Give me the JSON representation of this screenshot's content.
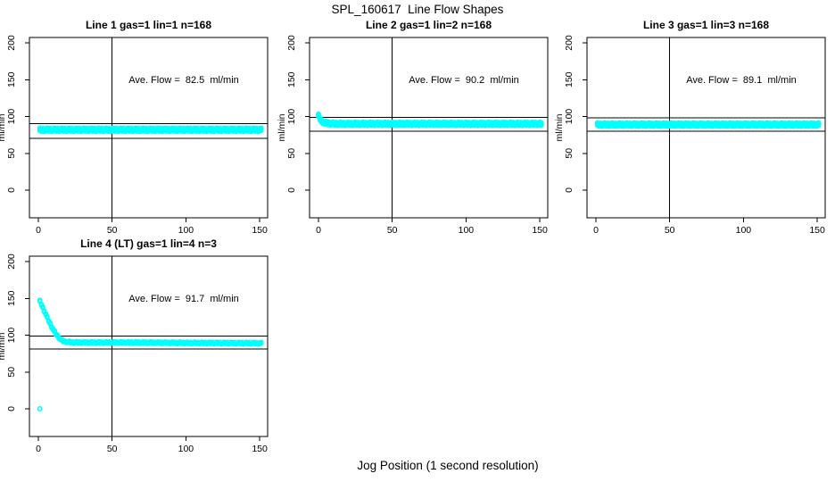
{
  "page": {
    "title": "SPL_160617  Line Flow Shapes",
    "xlabel": "Jog Position (1 second resolution)"
  },
  "colors": {
    "points": "#00FFFF",
    "axis": "#000000",
    "background": "#FFFFFF"
  },
  "chart_data": [
    {
      "type": "scatter",
      "title": "Line 1 gas=1 lin=1 n=168",
      "annotation": "Ave. Flow =  82.5  ml/min",
      "ave_flow_ml_min": 82.5,
      "gas": 1,
      "lin": 1,
      "n": 168,
      "ylabel": "ml/min",
      "x_ticks": [
        0,
        50,
        100,
        150
      ],
      "y_ticks": [
        0,
        50,
        100,
        150,
        200
      ],
      "xlim": [
        0,
        155
      ],
      "ylim": [
        -40,
        205
      ],
      "vline_x": 50,
      "ref_lines": [
        90.5,
        70.5
      ],
      "band_profile": [
        [
          1,
          82
        ],
        [
          151,
          82
        ]
      ],
      "band_thickness_px": 7,
      "outliers": []
    },
    {
      "type": "scatter",
      "title": "Line 2 gas=1 lin=2 n=168",
      "annotation": "Ave. Flow =  90.2  ml/min",
      "ave_flow_ml_min": 90.2,
      "gas": 1,
      "lin": 2,
      "n": 168,
      "ylabel": "ml/min",
      "x_ticks": [
        0,
        50,
        100,
        150
      ],
      "y_ticks": [
        0,
        50,
        100,
        150,
        200
      ],
      "xlim": [
        0,
        155
      ],
      "ylim": [
        -40,
        205
      ],
      "vline_x": 50,
      "ref_lines": [
        99,
        80
      ],
      "band_profile": [
        [
          0,
          101
        ],
        [
          1,
          97
        ],
        [
          2,
          94
        ],
        [
          4,
          91.5
        ],
        [
          7,
          90.5
        ],
        [
          12,
          90
        ],
        [
          151,
          90
        ]
      ],
      "band_thickness_px": 7,
      "outliers": []
    },
    {
      "type": "scatter",
      "title": "Line 3 gas=1 lin=3 n=168",
      "annotation": "Ave. Flow =  89.1  ml/min",
      "ave_flow_ml_min": 89.1,
      "gas": 1,
      "lin": 3,
      "n": 168,
      "ylabel": "ml/min",
      "x_ticks": [
        0,
        50,
        100,
        150
      ],
      "y_ticks": [
        0,
        50,
        100,
        150,
        200
      ],
      "xlim": [
        0,
        155
      ],
      "ylim": [
        -40,
        205
      ],
      "vline_x": 50,
      "ref_lines": [
        98,
        80
      ],
      "band_profile": [
        [
          1,
          89
        ],
        [
          151,
          89
        ]
      ],
      "band_thickness_px": 7,
      "outliers": []
    },
    {
      "type": "scatter",
      "title": "Line 4 (LT) gas=1 lin=4 n=3",
      "annotation": "Ave. Flow =  91.7  ml/min",
      "ave_flow_ml_min": 91.7,
      "gas": 1,
      "lin": 4,
      "n": 3,
      "ylabel": "ml/min",
      "x_ticks": [
        0,
        50,
        100,
        150
      ],
      "y_ticks": [
        0,
        50,
        100,
        150,
        200
      ],
      "xlim": [
        0,
        155
      ],
      "ylim": [
        -40,
        205
      ],
      "vline_x": 50,
      "ref_lines": [
        99,
        81
      ],
      "band_profile": [
        [
          1,
          146
        ],
        [
          2,
          142
        ],
        [
          3,
          137.5
        ],
        [
          4,
          133
        ],
        [
          5,
          128.5
        ],
        [
          6,
          124
        ],
        [
          7,
          119.5
        ],
        [
          8,
          115.5
        ],
        [
          9,
          111.5
        ],
        [
          10,
          108
        ],
        [
          11,
          104.5
        ],
        [
          12,
          101.5
        ],
        [
          13,
          99
        ],
        [
          14,
          96.5
        ],
        [
          15,
          94.5
        ],
        [
          16,
          93
        ],
        [
          17,
          92
        ],
        [
          18,
          91.3
        ],
        [
          20,
          90.7
        ],
        [
          23,
          90.2
        ],
        [
          28,
          90
        ],
        [
          60,
          90
        ],
        [
          100,
          89.5
        ],
        [
          151,
          89
        ]
      ],
      "band_thickness_px": 5,
      "outliers": [
        [
          1,
          0
        ]
      ]
    }
  ]
}
